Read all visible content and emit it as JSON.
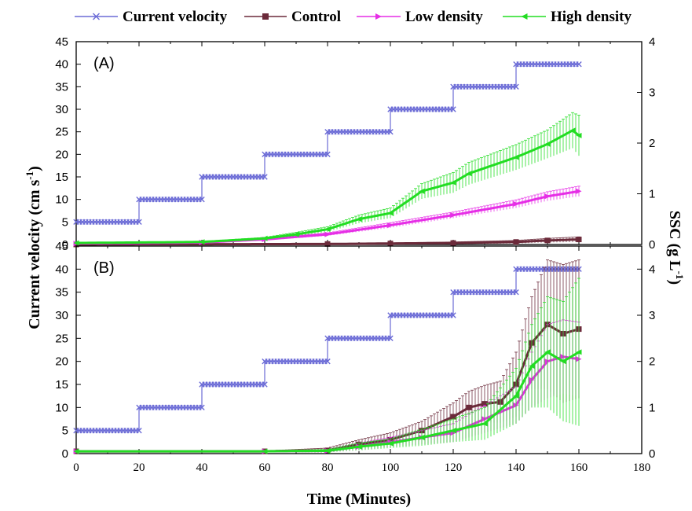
{
  "colors": {
    "current_velocity": "#6b6bd6",
    "control": "#6b2a3a",
    "low_density": "#e62ee6",
    "high_density": "#22dd22",
    "axis": "#000000"
  },
  "legend": {
    "placement": "top",
    "items": [
      {
        "label": "Current velocity",
        "marker": "x",
        "color_key": "current_velocity"
      },
      {
        "label": "Control",
        "marker": "square",
        "color_key": "control"
      },
      {
        "label": "Low density",
        "marker": "triangle-right",
        "color_key": "low_density"
      },
      {
        "label": "High density",
        "marker": "triangle-left",
        "color_key": "high_density"
      }
    ]
  },
  "chart_data": [
    {
      "type": "line",
      "panel_label": "(A)",
      "xlabel": "Time (Minutes)",
      "ylabel": "Current velocity (cm s-1)",
      "y2label": "SSC (g L-1)",
      "xlim": [
        0,
        180
      ],
      "ylim": [
        0,
        45
      ],
      "y2lim": [
        0,
        4
      ],
      "x_ticks": [
        0,
        20,
        40,
        60,
        80,
        100,
        120,
        140,
        160,
        180
      ],
      "y_ticks": [
        0,
        5,
        10,
        15,
        20,
        25,
        30,
        35,
        40,
        45
      ],
      "y2_ticks": [
        0,
        1,
        2,
        3,
        4
      ],
      "series": [
        {
          "name": "Current velocity",
          "axis": "left",
          "x": [
            0,
            20,
            20,
            40,
            40,
            60,
            60,
            80,
            80,
            100,
            100,
            120,
            120,
            140,
            140,
            160
          ],
          "y": [
            5,
            5,
            10,
            10,
            15,
            15,
            20,
            20,
            25,
            25,
            30,
            30,
            35,
            35,
            40,
            40
          ]
        },
        {
          "name": "Control",
          "axis": "right",
          "x": [
            0,
            80,
            100,
            120,
            140,
            150,
            160
          ],
          "y": [
            0,
            0.01,
            0.02,
            0.03,
            0.05,
            0.08,
            0.1
          ],
          "err": [
            0,
            0.01,
            0.01,
            0.02,
            0.03,
            0.04,
            0.05
          ]
        },
        {
          "name": "Low density",
          "axis": "right",
          "x": [
            0,
            40,
            60,
            80,
            100,
            120,
            140,
            150,
            160
          ],
          "y": [
            0.02,
            0.04,
            0.1,
            0.2,
            0.38,
            0.58,
            0.8,
            0.95,
            1.05
          ],
          "err": [
            0.01,
            0.01,
            0.02,
            0.03,
            0.05,
            0.06,
            0.08,
            0.09,
            0.1
          ]
        },
        {
          "name": "High density",
          "axis": "right",
          "x": [
            0,
            40,
            60,
            70,
            80,
            90,
            100,
            110,
            120,
            125,
            140,
            150,
            158,
            160
          ],
          "y": [
            0.03,
            0.05,
            0.12,
            0.2,
            0.3,
            0.5,
            0.62,
            1.05,
            1.22,
            1.4,
            1.72,
            1.98,
            2.25,
            2.15
          ],
          "err": [
            0.01,
            0.01,
            0.02,
            0.04,
            0.05,
            0.08,
            0.1,
            0.15,
            0.2,
            0.22,
            0.25,
            0.28,
            0.35,
            0.4
          ]
        }
      ]
    },
    {
      "type": "line",
      "panel_label": "(B)",
      "xlabel": "Time (Minutes)",
      "ylabel": "Current velocity (cm s-1)",
      "y2label": "SSC (g L-1)",
      "xlim": [
        0,
        180
      ],
      "ylim": [
        0,
        45
      ],
      "y2lim": [
        0,
        4.5
      ],
      "x_ticks": [
        0,
        20,
        40,
        60,
        80,
        100,
        120,
        140,
        160,
        180
      ],
      "y_ticks": [
        0,
        5,
        10,
        15,
        20,
        25,
        30,
        35,
        40,
        45
      ],
      "y2_ticks": [
        0,
        1,
        2,
        3,
        4
      ],
      "series": [
        {
          "name": "Current velocity",
          "axis": "left",
          "x": [
            0,
            20,
            20,
            40,
            40,
            60,
            60,
            80,
            80,
            100,
            100,
            120,
            120,
            140,
            140,
            160
          ],
          "y": [
            5,
            5,
            10,
            10,
            15,
            15,
            20,
            20,
            25,
            25,
            30,
            30,
            35,
            35,
            40,
            40
          ]
        },
        {
          "name": "Control",
          "axis": "right",
          "x": [
            0,
            60,
            80,
            90,
            100,
            110,
            120,
            125,
            130,
            135,
            140,
            145,
            150,
            155,
            160
          ],
          "y": [
            0.05,
            0.05,
            0.07,
            0.2,
            0.3,
            0.5,
            0.8,
            1.0,
            1.08,
            1.12,
            1.5,
            2.4,
            2.8,
            2.6,
            2.7
          ],
          "err": [
            0.01,
            0.01,
            0.05,
            0.1,
            0.15,
            0.2,
            0.3,
            0.35,
            0.4,
            0.45,
            0.7,
            1.0,
            1.4,
            1.5,
            1.5
          ]
        },
        {
          "name": "Low density",
          "axis": "right",
          "x": [
            0,
            60,
            80,
            90,
            100,
            110,
            120,
            130,
            140,
            145,
            150,
            155,
            160
          ],
          "y": [
            0.05,
            0.05,
            0.06,
            0.15,
            0.25,
            0.35,
            0.45,
            0.75,
            1.05,
            1.6,
            2.0,
            2.1,
            2.05
          ],
          "err": [
            0.01,
            0.01,
            0.03,
            0.08,
            0.1,
            0.15,
            0.2,
            0.3,
            0.4,
            0.6,
            0.8,
            0.8,
            0.8
          ]
        },
        {
          "name": "High density",
          "axis": "right",
          "x": [
            0,
            60,
            80,
            90,
            100,
            110,
            120,
            130,
            140,
            145,
            150,
            155,
            160
          ],
          "y": [
            0.05,
            0.05,
            0.06,
            0.15,
            0.22,
            0.35,
            0.5,
            0.65,
            1.25,
            1.9,
            2.2,
            2.0,
            2.2
          ],
          "err": [
            0.01,
            0.01,
            0.03,
            0.08,
            0.1,
            0.18,
            0.25,
            0.35,
            0.6,
            0.9,
            1.2,
            1.3,
            1.6
          ]
        }
      ]
    }
  ]
}
